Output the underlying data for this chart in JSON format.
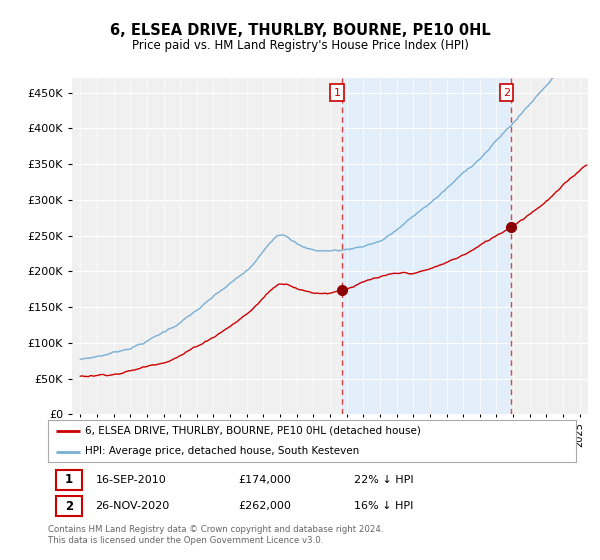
{
  "title": "6, ELSEA DRIVE, THURLBY, BOURNE, PE10 0HL",
  "subtitle": "Price paid vs. HM Land Registry's House Price Index (HPI)",
  "red_label": "6, ELSEA DRIVE, THURLBY, BOURNE, PE10 0HL (detached house)",
  "blue_label": "HPI: Average price, detached house, South Kesteven",
  "annotation1_date": "16-SEP-2010",
  "annotation1_price": "£174,000",
  "annotation1_hpi": "22% ↓ HPI",
  "annotation1_year": 2010.72,
  "annotation1_value": 174000,
  "annotation2_date": "26-NOV-2020",
  "annotation2_price": "£262,000",
  "annotation2_hpi": "16% ↓ HPI",
  "annotation2_year": 2020.9,
  "annotation2_value": 262000,
  "footer": "Contains HM Land Registry data © Crown copyright and database right 2024.\nThis data is licensed under the Open Government Licence v3.0.",
  "ylim_min": 0,
  "ylim_max": 470000,
  "red_color": "#cc0000",
  "blue_color": "#7aafd4",
  "dot_color": "#8b0000",
  "vline_color": "#dd4444",
  "shade_color": "#ddeeff",
  "background_color": "#ffffff",
  "plot_bg_color": "#f0f0f0"
}
